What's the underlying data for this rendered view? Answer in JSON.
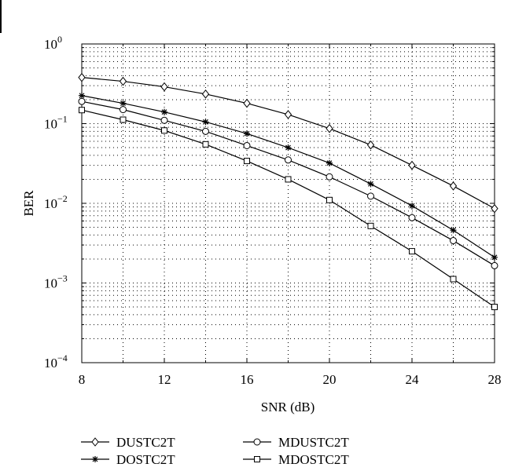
{
  "chart_data": {
    "type": "line",
    "xlabel": "SNR (dB)",
    "ylabel": "BER",
    "xlim": [
      8,
      28
    ],
    "ylim": [
      0.0001,
      1
    ],
    "yscale": "log",
    "grid": true,
    "legend_position": "bottom",
    "x_ticks": [
      "8",
      "12",
      "16",
      "20",
      "24",
      "28"
    ],
    "y_ticks": [
      {
        "base": "10",
        "exp": "0"
      },
      {
        "base": "10",
        "exp": "−1"
      },
      {
        "base": "10",
        "exp": "−2"
      },
      {
        "base": "10",
        "exp": "−3"
      },
      {
        "base": "10",
        "exp": "−4"
      }
    ],
    "x": [
      8,
      10,
      12,
      14,
      16,
      18,
      20,
      22,
      24,
      26,
      28
    ],
    "series": [
      {
        "name": "DUSTC2T",
        "marker": "diamond",
        "values": [
          0.38,
          0.34,
          0.29,
          0.235,
          0.18,
          0.13,
          0.087,
          0.054,
          0.03,
          0.0165,
          0.0086
        ]
      },
      {
        "name": "DOSTC2T",
        "marker": "star",
        "values": [
          0.225,
          0.18,
          0.14,
          0.105,
          0.075,
          0.05,
          0.032,
          0.0175,
          0.0093,
          0.0046,
          0.0021
        ]
      },
      {
        "name": "MDUSTC2T",
        "marker": "circle",
        "values": [
          0.19,
          0.15,
          0.11,
          0.08,
          0.053,
          0.035,
          0.0215,
          0.0123,
          0.0066,
          0.0034,
          0.00165
        ]
      },
      {
        "name": "MDOSTC2T",
        "marker": "square",
        "values": [
          0.148,
          0.112,
          0.082,
          0.055,
          0.034,
          0.02,
          0.011,
          0.0052,
          0.0025,
          0.00112,
          0.0005
        ]
      }
    ]
  }
}
